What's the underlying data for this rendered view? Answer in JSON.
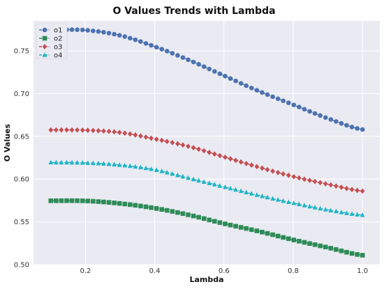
{
  "chart_data": {
    "type": "line",
    "title": "O Values Trends with Lambda",
    "xlabel": "Lambda",
    "ylabel": "O Values",
    "xlim": [
      0.05,
      1.05
    ],
    "ylim": [
      0.5,
      0.785
    ],
    "xticks": [
      0.2,
      0.4,
      0.6,
      0.8,
      1.0
    ],
    "xtick_labels": [
      "0.2",
      "0.4",
      "0.6",
      "0.8",
      "1.0"
    ],
    "yticks": [
      0.5,
      0.55,
      0.6,
      0.65,
      0.7,
      0.75
    ],
    "ytick_labels": [
      "0.50",
      "0.55",
      "0.60",
      "0.65",
      "0.70",
      "0.75"
    ],
    "grid": true,
    "legend_position": "top-left",
    "x": {
      "start": 0.1,
      "stop": 1.0,
      "count": 60
    },
    "series": [
      {
        "name": "o1",
        "color": "#4c72b0",
        "marker": "circle",
        "linestyle": "dashdot",
        "values_at": {
          "0.1": 0.7745,
          "0.2": 0.7742,
          "0.3": 0.768,
          "0.4": 0.755,
          "0.5": 0.739,
          "0.6": 0.721,
          "0.7": 0.703,
          "0.8": 0.687,
          "0.9": 0.671,
          "1.0": 0.658
        }
      },
      {
        "name": "o2",
        "color": "#2e8b57",
        "marker": "square",
        "linestyle": "dashdot",
        "values_at": {
          "0.1": 0.5747,
          "0.2": 0.5745,
          "0.3": 0.5715,
          "0.4": 0.566,
          "0.5": 0.558,
          "0.6": 0.548,
          "0.7": 0.539,
          "0.8": 0.529,
          "0.9": 0.52,
          "1.0": 0.511
        }
      },
      {
        "name": "o3",
        "color": "#c44e52",
        "marker": "diamond",
        "linestyle": "dashdot",
        "values_at": {
          "0.1": 0.6575,
          "0.2": 0.6572,
          "0.3": 0.6545,
          "0.4": 0.647,
          "0.5": 0.638,
          "0.6": 0.626,
          "0.7": 0.614,
          "0.8": 0.603,
          "0.9": 0.594,
          "1.0": 0.586
        }
      },
      {
        "name": "o4",
        "color": "#1fb5c4",
        "marker": "triangle",
        "linestyle": "dashdot",
        "values_at": {
          "0.1": 0.6195,
          "0.2": 0.619,
          "0.3": 0.6165,
          "0.4": 0.611,
          "0.5": 0.601,
          "0.6": 0.591,
          "0.7": 0.581,
          "0.8": 0.572,
          "0.9": 0.564,
          "1.0": 0.558
        }
      }
    ]
  }
}
